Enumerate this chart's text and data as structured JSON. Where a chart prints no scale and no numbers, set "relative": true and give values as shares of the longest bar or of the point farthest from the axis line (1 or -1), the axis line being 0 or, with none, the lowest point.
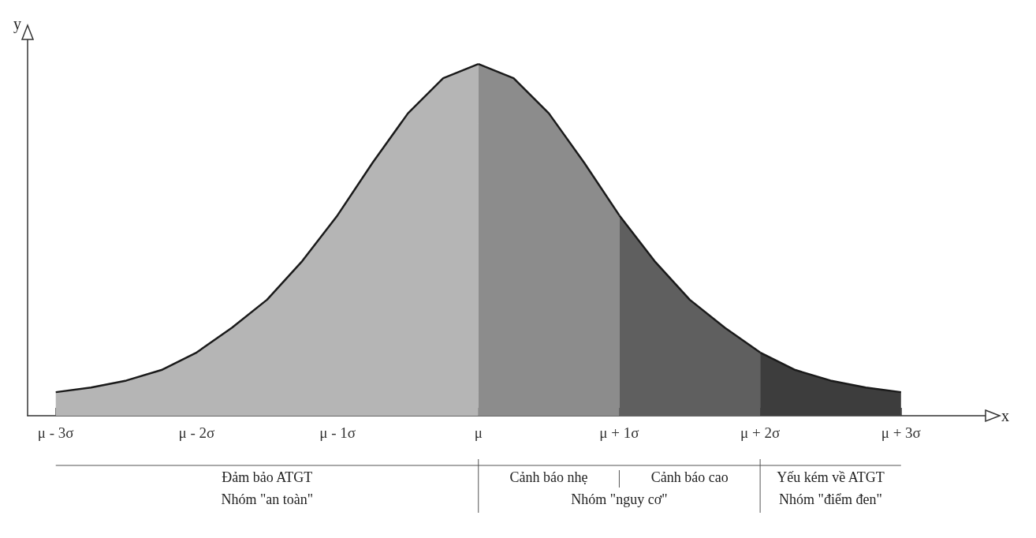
{
  "chart_data": {
    "type": "area",
    "relative": true,
    "xlabel": "x",
    "ylabel": "y",
    "xlim": [
      -3.2,
      3.6
    ],
    "xticks": [
      {
        "value": -3,
        "label": "μ - 3σ"
      },
      {
        "value": -2,
        "label": "μ - 2σ"
      },
      {
        "value": -1,
        "label": "μ - 1σ"
      },
      {
        "value": 0,
        "label": "μ"
      },
      {
        "value": 1,
        "label": "μ + 1σ"
      },
      {
        "value": 2,
        "label": "μ + 2σ"
      },
      {
        "value": 3,
        "label": "μ + 3σ"
      }
    ],
    "series": [
      {
        "color": "#b5b5b5",
        "x": [
          -3,
          -2.75,
          -2.5,
          -2.25,
          -2,
          -1.75,
          -1.5,
          -1.25,
          -1,
          -0.75,
          -0.5,
          -0.25,
          0
        ],
        "values": [
          0.067,
          0.08,
          0.1,
          0.13,
          0.18,
          0.25,
          0.33,
          0.44,
          0.57,
          0.72,
          0.86,
          0.96,
          1
        ]
      },
      {
        "color": "#8c8c8c",
        "x": [
          0,
          0.25,
          0.5,
          0.75,
          1
        ],
        "values": [
          1,
          0.96,
          0.86,
          0.72,
          0.57
        ]
      },
      {
        "color": "#5f5f5f",
        "x": [
          1,
          1.25,
          1.5,
          1.75,
          2
        ],
        "values": [
          0.57,
          0.44,
          0.33,
          0.25,
          0.18
        ]
      },
      {
        "color": "#3d3d3d",
        "x": [
          2,
          2.25,
          2.5,
          2.75,
          3
        ],
        "values": [
          0.18,
          0.13,
          0.1,
          0.08,
          0.067
        ]
      }
    ],
    "annotations": [
      "Đảm bảo ATGT",
      "Cảnh báo nhẹ",
      "Cảnh báo cao",
      "Yếu kém về ATGT",
      "Nhóm \"an toàn\"",
      "Nhóm \"nguy cơ\"",
      "Nhóm \"điểm đen\""
    ],
    "grid": false
  }
}
